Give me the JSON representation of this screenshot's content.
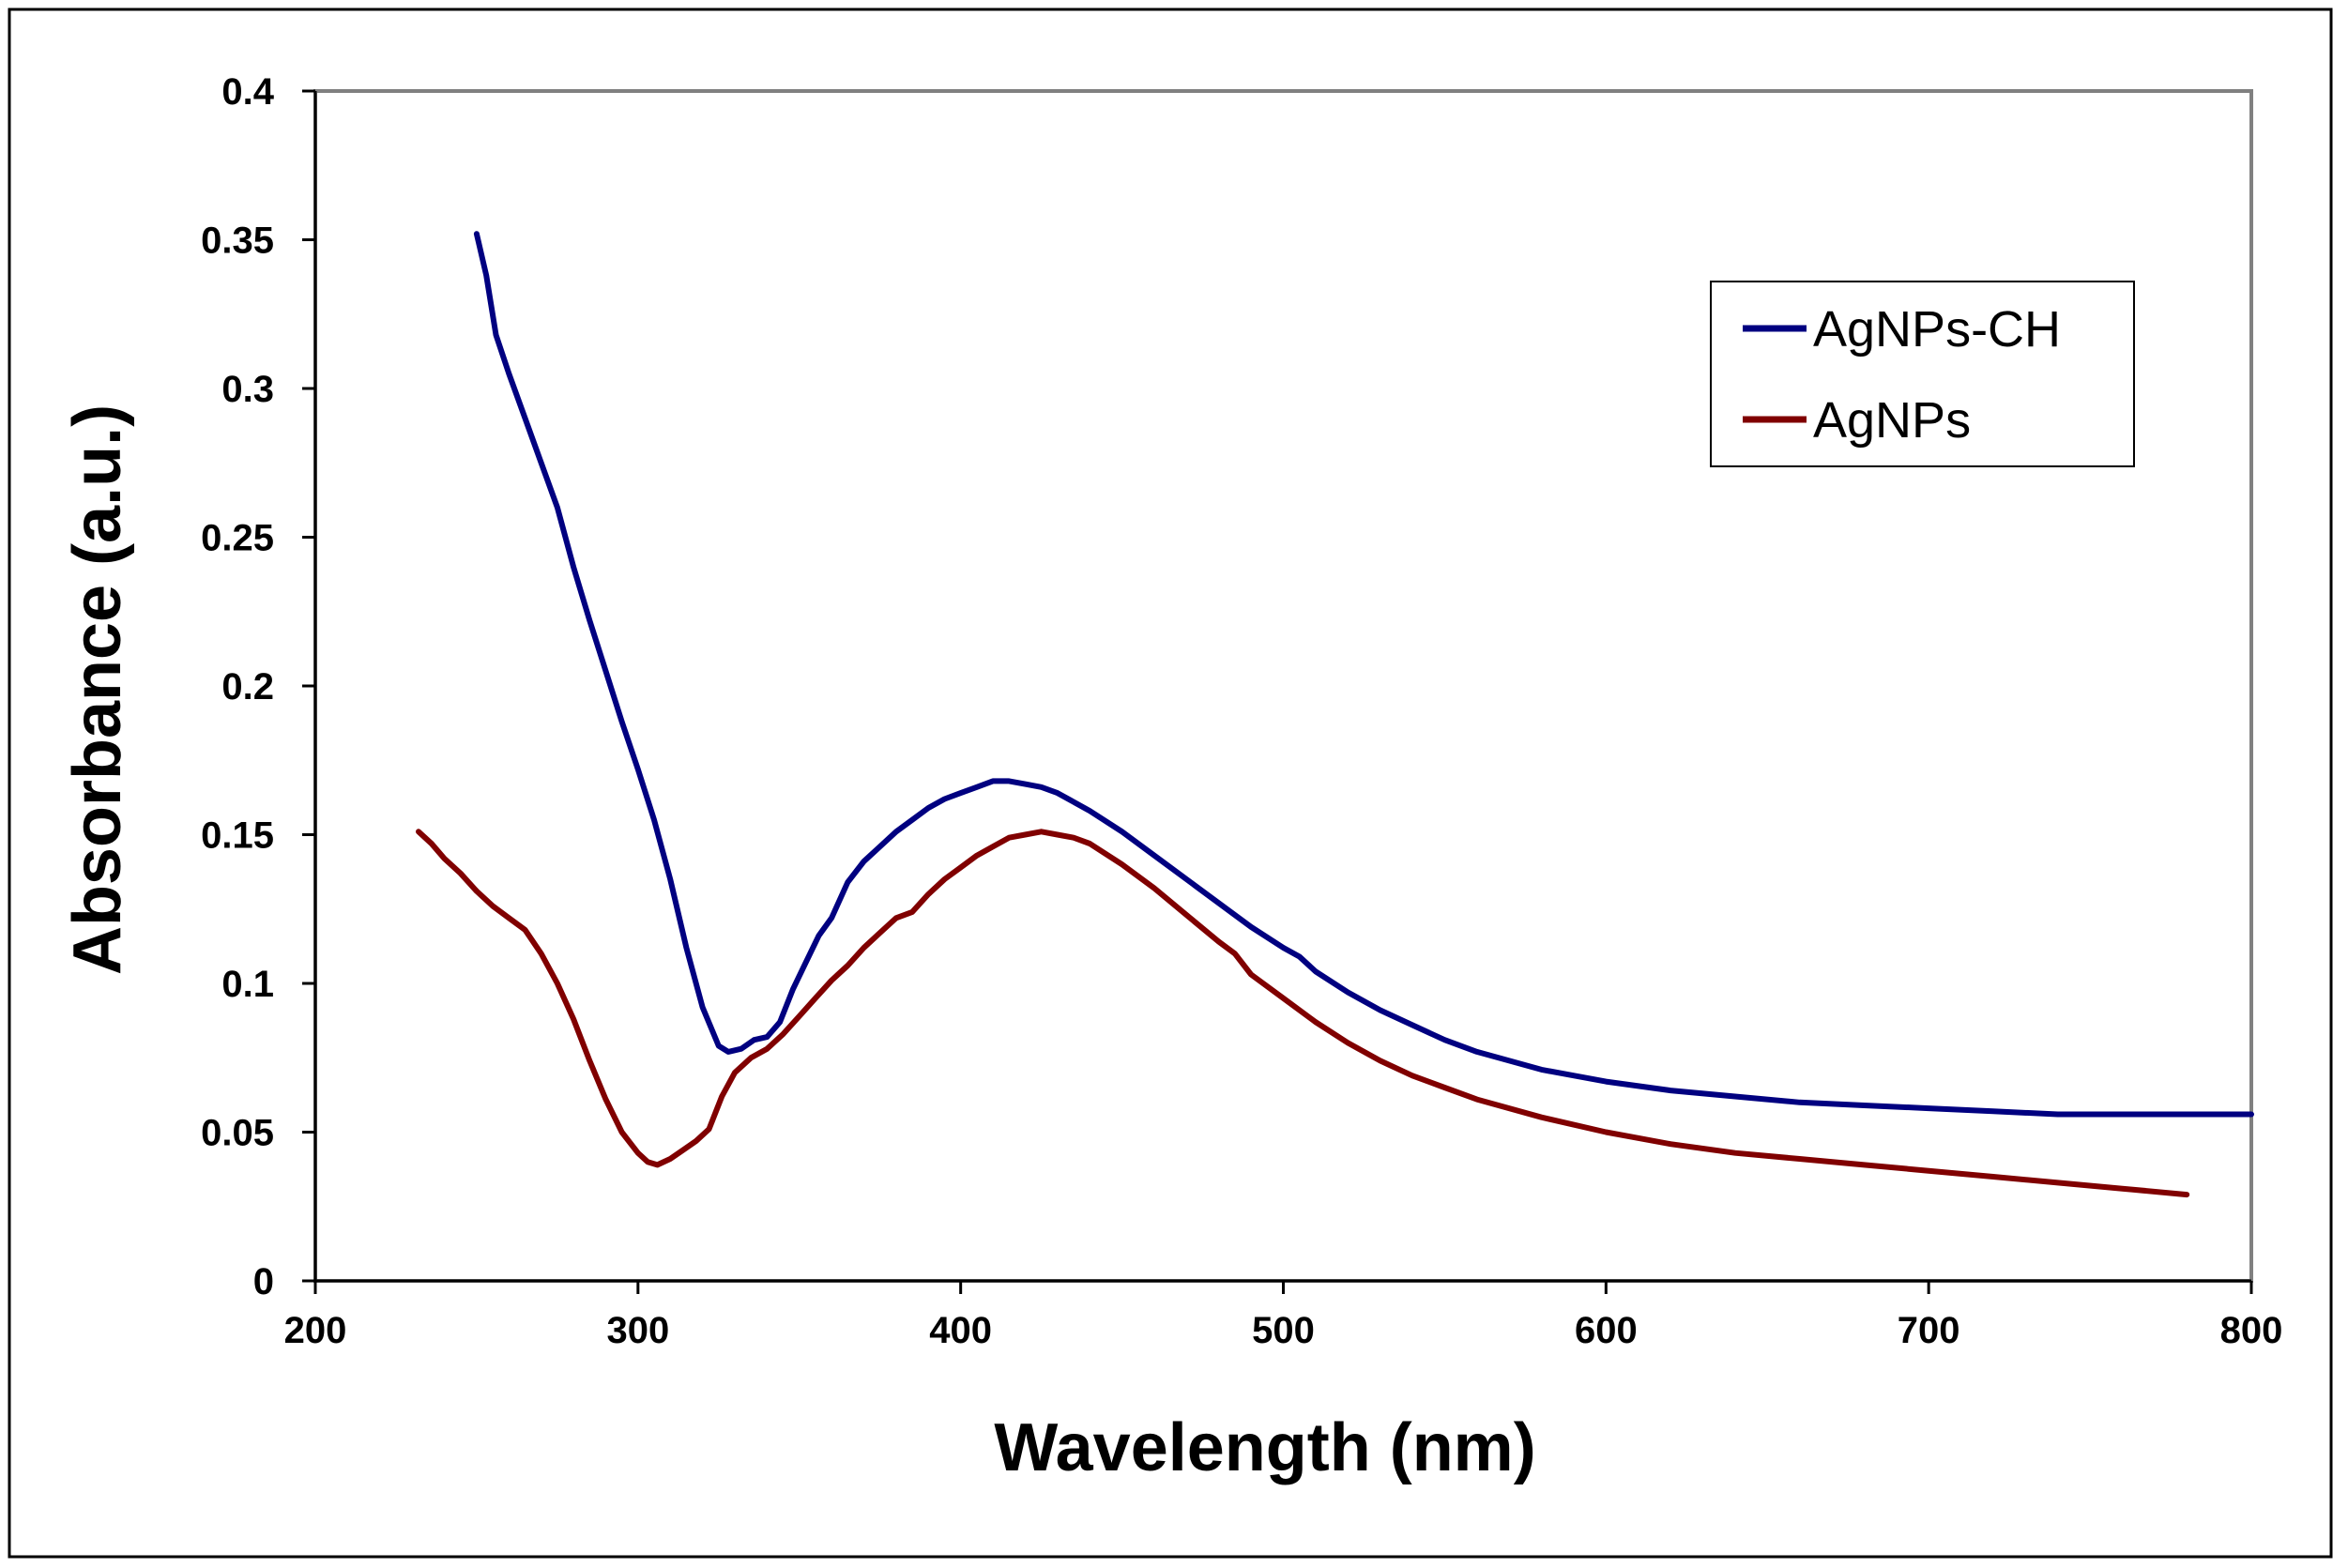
{
  "chart_data": {
    "type": "line",
    "title": "",
    "xlabel": "Wavelength (nm)",
    "ylabel": "Absorbance (a.u.)",
    "xlim": [
      200,
      800
    ],
    "ylim": [
      0,
      0.4
    ],
    "xticks": [
      200,
      300,
      400,
      500,
      600,
      700,
      800
    ],
    "xtick_labels": [
      "200",
      "300",
      "400",
      "500",
      "600",
      "700",
      "800"
    ],
    "yticks": [
      0,
      0.05,
      0.1,
      0.15,
      0.2,
      0.25,
      0.3,
      0.35,
      0.4
    ],
    "ytick_labels": [
      "0",
      "0.05",
      "0.1",
      "0.15",
      "0.2",
      "0.25",
      "0.3",
      "0.35",
      "0.4"
    ],
    "grid": false,
    "legend_position": "top-right",
    "series": [
      {
        "name": "AgNPs-CH",
        "color": "#000080",
        "x": [
          250,
          253,
          256,
          260,
          265,
          270,
          275,
          280,
          285,
          290,
          295,
          300,
          305,
          310,
          315,
          320,
          325,
          328,
          332,
          336,
          340,
          344,
          348,
          352,
          356,
          360,
          365,
          370,
          375,
          380,
          385,
          390,
          395,
          400,
          405,
          410,
          415,
          420,
          425,
          430,
          440,
          450,
          460,
          470,
          480,
          490,
          500,
          505,
          510,
          520,
          530,
          540,
          550,
          560,
          570,
          580,
          600,
          620,
          640,
          660,
          680,
          700,
          720,
          740,
          760,
          780,
          800
        ],
        "y": [
          0.352,
          0.338,
          0.318,
          0.305,
          0.29,
          0.275,
          0.26,
          0.24,
          0.222,
          0.205,
          0.188,
          0.172,
          0.155,
          0.135,
          0.112,
          0.092,
          0.079,
          0.077,
          0.078,
          0.081,
          0.082,
          0.087,
          0.098,
          0.107,
          0.116,
          0.122,
          0.134,
          0.141,
          0.146,
          0.151,
          0.155,
          0.159,
          0.162,
          0.164,
          0.166,
          0.168,
          0.168,
          0.167,
          0.166,
          0.164,
          0.158,
          0.151,
          0.143,
          0.135,
          0.127,
          0.119,
          0.112,
          0.109,
          0.104,
          0.097,
          0.091,
          0.086,
          0.081,
          0.077,
          0.074,
          0.071,
          0.067,
          0.064,
          0.062,
          0.06,
          0.059,
          0.058,
          0.057,
          0.056,
          0.056,
          0.056,
          0.056
        ]
      },
      {
        "name": "AgNPs",
        "color": "#800000",
        "x": [
          232,
          236,
          240,
          245,
          250,
          255,
          260,
          265,
          270,
          275,
          280,
          285,
          290,
          295,
          300,
          303,
          306,
          310,
          314,
          318,
          322,
          326,
          330,
          335,
          340,
          345,
          350,
          355,
          360,
          365,
          370,
          375,
          380,
          385,
          390,
          395,
          400,
          405,
          410,
          415,
          420,
          425,
          430,
          435,
          440,
          450,
          460,
          470,
          480,
          485,
          490,
          500,
          510,
          520,
          530,
          540,
          550,
          560,
          580,
          600,
          620,
          640,
          660,
          680,
          700,
          720,
          740,
          760,
          780
        ],
        "y": [
          0.151,
          0.147,
          0.142,
          0.137,
          0.131,
          0.126,
          0.122,
          0.118,
          0.11,
          0.1,
          0.088,
          0.074,
          0.061,
          0.05,
          0.043,
          0.04,
          0.039,
          0.041,
          0.044,
          0.047,
          0.051,
          0.062,
          0.07,
          0.075,
          0.078,
          0.083,
          0.089,
          0.095,
          0.101,
          0.106,
          0.112,
          0.117,
          0.122,
          0.124,
          0.13,
          0.135,
          0.139,
          0.143,
          0.146,
          0.149,
          0.15,
          0.151,
          0.15,
          0.149,
          0.147,
          0.14,
          0.132,
          0.123,
          0.114,
          0.11,
          0.103,
          0.095,
          0.087,
          0.08,
          0.074,
          0.069,
          0.065,
          0.061,
          0.055,
          0.05,
          0.046,
          0.043,
          0.041,
          0.039,
          0.037,
          0.035,
          0.033,
          0.031,
          0.029
        ]
      }
    ]
  }
}
